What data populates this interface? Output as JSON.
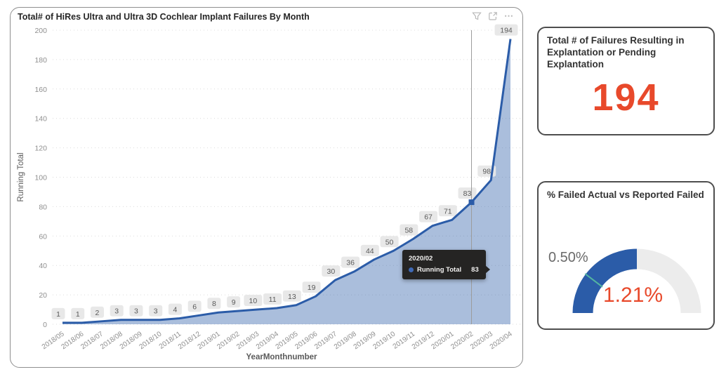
{
  "report": {
    "visual_header_icons": [
      "filter",
      "focus-mode",
      "more-options"
    ]
  },
  "chart_data": [
    {
      "type": "area",
      "title": "Total# of HiRes Ultra and Ultra 3D Cochlear Implant Failures By Month",
      "xlabel": "YearMonthnumber",
      "ylabel": "Running Total",
      "ylim": [
        0,
        200
      ],
      "y_ticks": [
        0,
        20,
        40,
        60,
        80,
        100,
        120,
        140,
        160,
        180,
        200
      ],
      "grid": "dotted",
      "categories": [
        "2018/05",
        "2018/06",
        "2018/07",
        "2018/08",
        "2018/09",
        "2018/10",
        "2018/11",
        "2018/12",
        "2019/01",
        "2019/02",
        "2019/03",
        "2019/04",
        "2019/05",
        "2019/06",
        "2019/07",
        "2019/08",
        "2019/09",
        "2019/10",
        "2019/11",
        "2019/12",
        "2020/01",
        "2020/02",
        "2020/03",
        "2020/04"
      ],
      "series": [
        {
          "name": "Running Total",
          "values": [
            1,
            1,
            2,
            3,
            3,
            3,
            4,
            6,
            8,
            9,
            10,
            11,
            13,
            19,
            30,
            36,
            44,
            50,
            58,
            67,
            71,
            83,
            98,
            194
          ]
        }
      ],
      "highlight": {
        "category": "2020/02",
        "value": 83
      },
      "tooltip": {
        "header": "2020/02",
        "series": "Running Total",
        "value": "83"
      },
      "colors": {
        "line": "#2B5CA8",
        "area_fill": "#A9B8DC",
        "label_bg": "#E7E7E7",
        "crosshair": "#9B9B9B"
      }
    },
    {
      "type": "card",
      "title": "Total # of Failures Resulting in Explantation or Pending Explantation",
      "value": "194",
      "value_color": "#E8492B"
    },
    {
      "type": "gauge",
      "title": "% Failed Actual vs Reported Failed",
      "value": 1.21,
      "value_label": "1.21%",
      "target": 0.5,
      "target_label": "0.50%",
      "min": 0,
      "max": 2.42,
      "colors": {
        "fill": "#2B5CA8",
        "track": "#ECECEC",
        "target": "#53B5A0",
        "value": "#E8492B"
      }
    }
  ]
}
